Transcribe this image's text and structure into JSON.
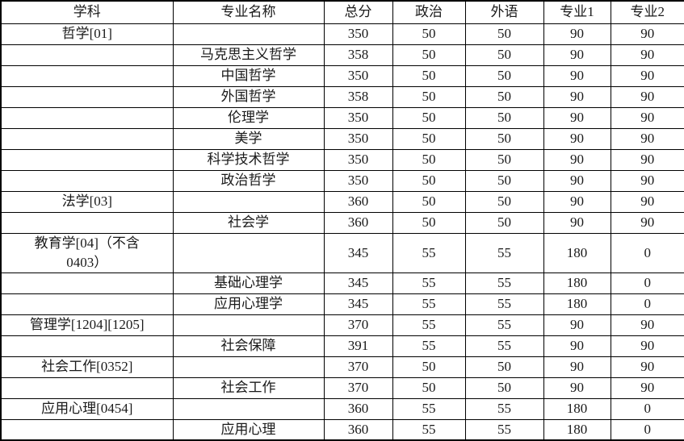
{
  "colors": {
    "background": "#FFFFFF",
    "border": "#000000",
    "text": "#1A1A1A"
  },
  "table": {
    "columns": [
      "学科",
      "专业名称",
      "总分",
      "政治",
      "外语",
      "专业1",
      "专业2"
    ],
    "rows": [
      [
        "哲学[01]",
        "",
        "350",
        "50",
        "50",
        "90",
        "90"
      ],
      [
        "",
        "马克思主义哲学",
        "358",
        "50",
        "50",
        "90",
        "90"
      ],
      [
        "",
        "中国哲学",
        "350",
        "50",
        "50",
        "90",
        "90"
      ],
      [
        "",
        "外国哲学",
        "358",
        "50",
        "50",
        "90",
        "90"
      ],
      [
        "",
        "伦理学",
        "350",
        "50",
        "50",
        "90",
        "90"
      ],
      [
        "",
        "美学",
        "350",
        "50",
        "50",
        "90",
        "90"
      ],
      [
        "",
        "科学技术哲学",
        "350",
        "50",
        "50",
        "90",
        "90"
      ],
      [
        "",
        "政治哲学",
        "350",
        "50",
        "50",
        "90",
        "90"
      ],
      [
        "法学[03]",
        "",
        "360",
        "50",
        "50",
        "90",
        "90"
      ],
      [
        "",
        "社会学",
        "360",
        "50",
        "50",
        "90",
        "90"
      ],
      [
        "教育学[04]（不含\n0403）",
        "",
        "345",
        "55",
        "55",
        "180",
        "0"
      ],
      [
        "",
        "基础心理学",
        "345",
        "55",
        "55",
        "180",
        "0"
      ],
      [
        "",
        "应用心理学",
        "345",
        "55",
        "55",
        "180",
        "0"
      ],
      [
        "管理学[1204][1205]",
        "",
        "370",
        "55",
        "55",
        "90",
        "90"
      ],
      [
        "",
        "社会保障",
        "391",
        "55",
        "55",
        "90",
        "90"
      ],
      [
        "社会工作[0352]",
        "",
        "370",
        "50",
        "50",
        "90",
        "90"
      ],
      [
        "",
        "社会工作",
        "370",
        "50",
        "50",
        "90",
        "90"
      ],
      [
        "应用心理[0454]",
        "",
        "360",
        "55",
        "55",
        "180",
        "0"
      ],
      [
        "",
        "应用心理",
        "360",
        "55",
        "55",
        "180",
        "0"
      ]
    ]
  }
}
